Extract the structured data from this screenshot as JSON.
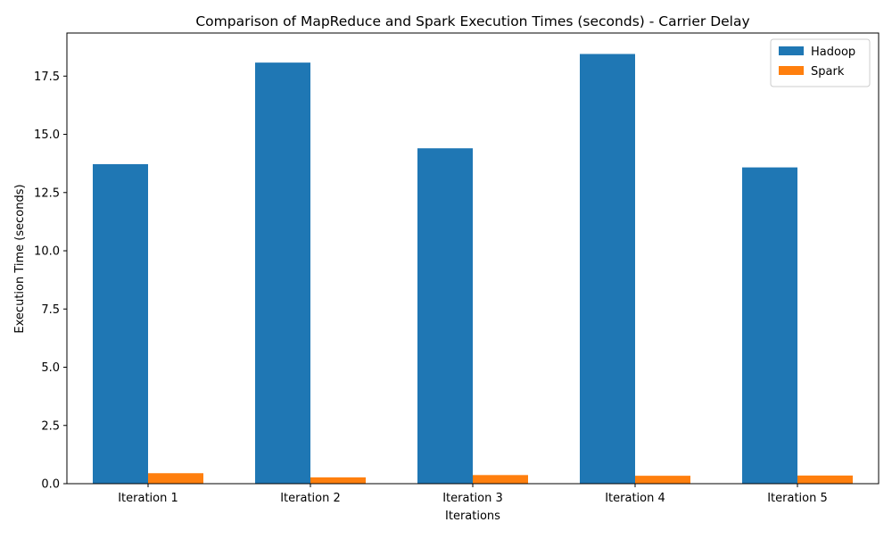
{
  "chart_data": {
    "type": "bar",
    "title": "Comparison of MapReduce and Spark Execution Times (seconds) - Carrier Delay",
    "xlabel": "Iterations",
    "ylabel": "Execution Time (seconds)",
    "categories": [
      "Iteration 1",
      "Iteration 2",
      "Iteration 3",
      "Iteration 4",
      "Iteration 5"
    ],
    "series": [
      {
        "name": "Hadoop",
        "color": "#1f77b4",
        "values": [
          13.72,
          18.08,
          14.4,
          18.45,
          13.58
        ]
      },
      {
        "name": "Spark",
        "color": "#ff7f0e",
        "values": [
          0.45,
          0.27,
          0.37,
          0.34,
          0.35
        ]
      }
    ],
    "ylim": [
      0,
      19.35
    ],
    "yticks": [
      0.0,
      2.5,
      5.0,
      7.5,
      10.0,
      12.5,
      15.0,
      17.5
    ],
    "ytick_labels": [
      "0.0",
      "2.5",
      "5.0",
      "7.5",
      "10.0",
      "12.5",
      "15.0",
      "17.5"
    ],
    "legend_position": "top-right",
    "grid": false
  }
}
